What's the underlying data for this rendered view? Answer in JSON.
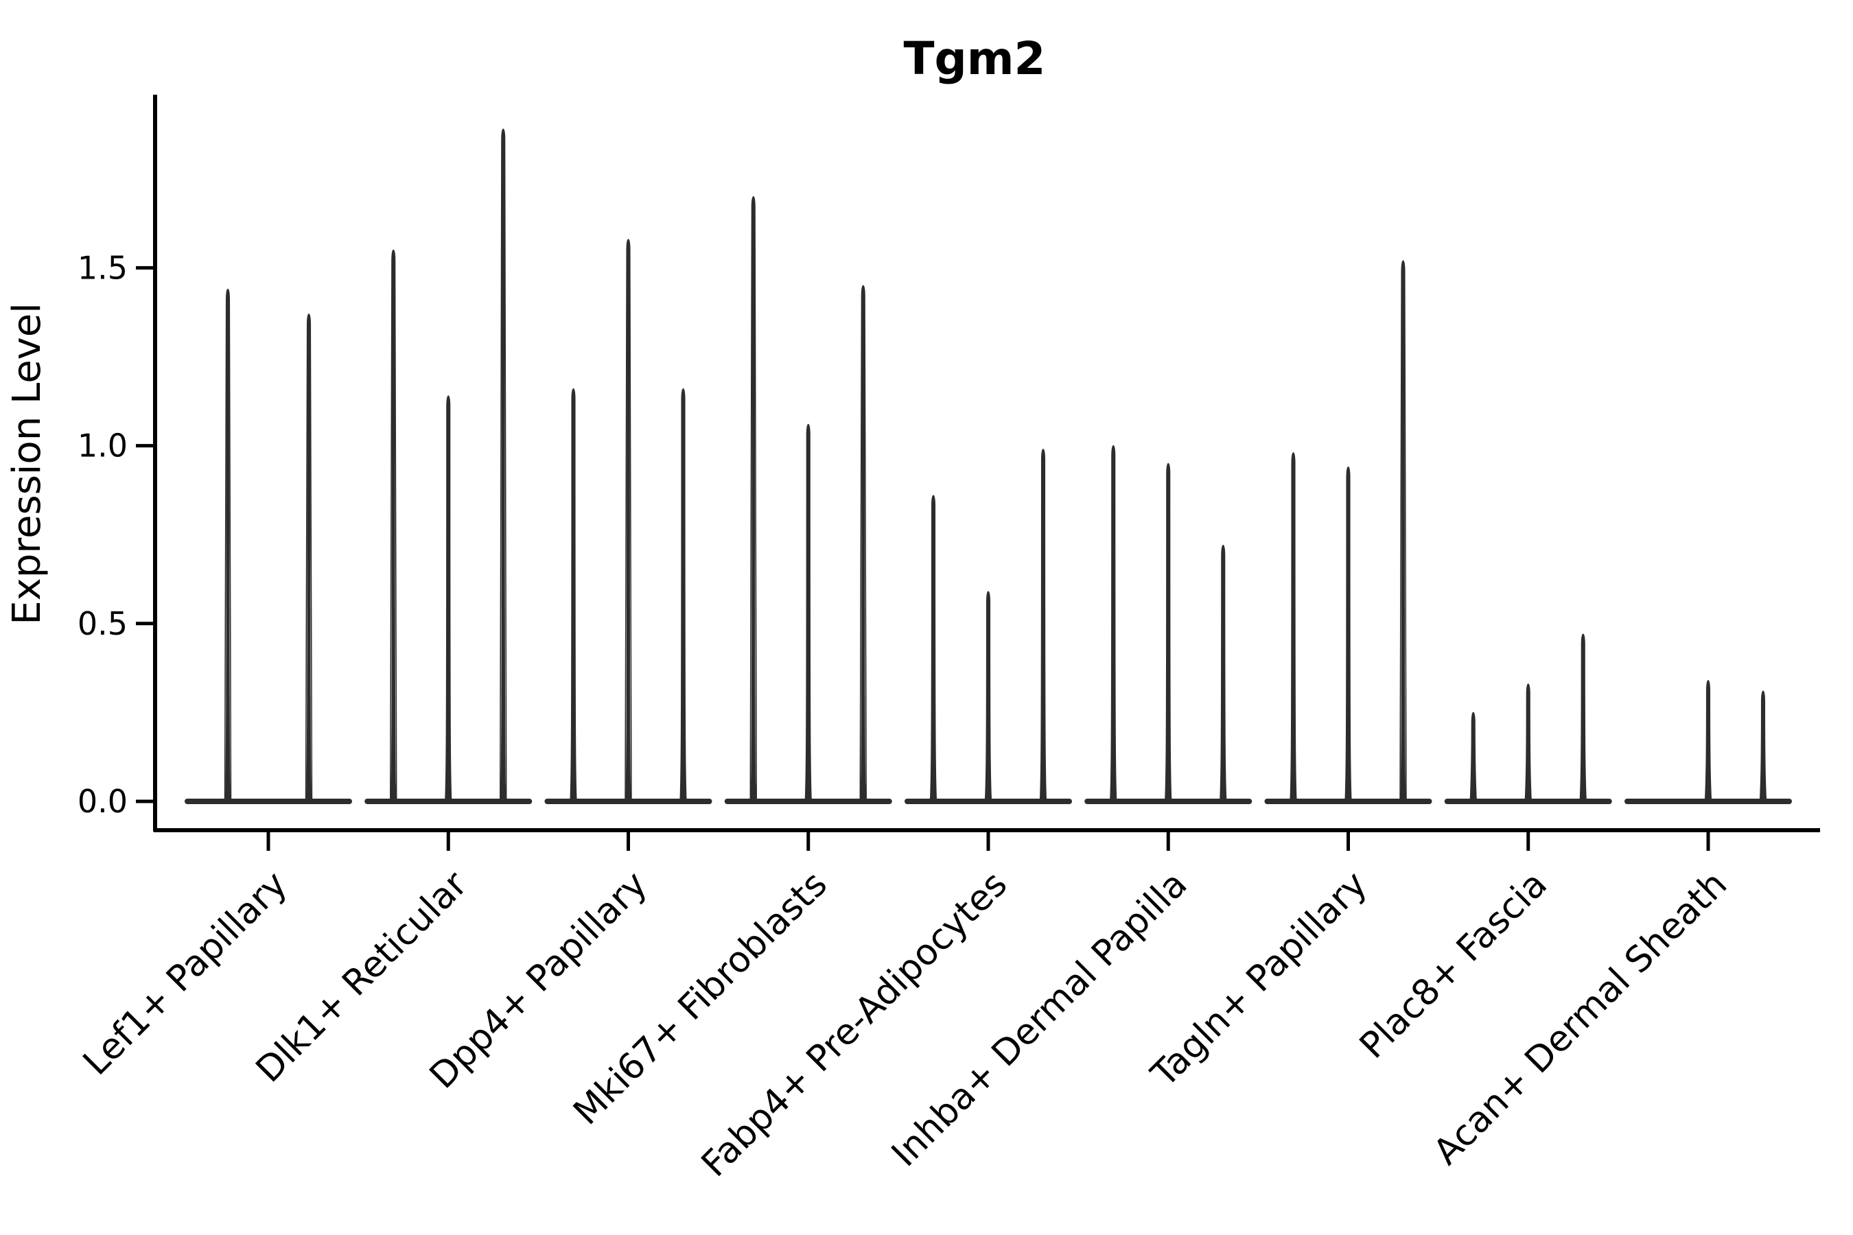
{
  "chart_data": {
    "type": "violin",
    "title": "Tgm2",
    "ylabel": "Expression Level",
    "xlabel": "",
    "ytick_labels": [
      "0.0",
      "0.5",
      "1.0",
      "1.5"
    ],
    "ytick_values": [
      0.0,
      0.5,
      1.0,
      1.5
    ],
    "ylim": [
      -0.08,
      1.99
    ],
    "grid": false,
    "legend": "none",
    "categories": [
      "Lef1+ Papillary",
      "Dlk1+ Reticular",
      "Dpp4+ Papillary",
      "Mki67+ Fibroblasts",
      "Fabp4+ Pre-Adipocytes",
      "Inhba+ Dermal Papilla",
      "Tagln+ Papillary",
      "Plac8+ Fascia",
      "Acan+ Dermal Sheath"
    ],
    "groups": [
      {
        "label": "Lef1+ Papillary",
        "violins": [
          {
            "offset": -59,
            "peak": 1.44
          },
          {
            "offset": 59,
            "peak": 1.37
          }
        ]
      },
      {
        "label": "Dlk1+ Reticular",
        "violins": [
          {
            "offset": -80,
            "peak": 1.55
          },
          {
            "offset": 0,
            "peak": 1.14
          },
          {
            "offset": 80,
            "peak": 1.89
          }
        ]
      },
      {
        "label": "Dpp4+ Papillary",
        "violins": [
          {
            "offset": -80,
            "peak": 1.16
          },
          {
            "offset": 0,
            "peak": 1.58
          },
          {
            "offset": 80,
            "peak": 1.16
          }
        ]
      },
      {
        "label": "Mki67+ Fibroblasts",
        "violins": [
          {
            "offset": -80,
            "peak": 1.7
          },
          {
            "offset": 0,
            "peak": 1.06
          },
          {
            "offset": 80,
            "peak": 1.45
          }
        ]
      },
      {
        "label": "Fabp4+ Pre-Adipocytes",
        "violins": [
          {
            "offset": -80,
            "peak": 0.86
          },
          {
            "offset": 0,
            "peak": 0.59
          },
          {
            "offset": 80,
            "peak": 0.99
          }
        ]
      },
      {
        "label": "Inhba+ Dermal Papilla",
        "violins": [
          {
            "offset": -80,
            "peak": 1.0
          },
          {
            "offset": 0,
            "peak": 0.95
          },
          {
            "offset": 80,
            "peak": 0.72
          }
        ]
      },
      {
        "label": "Tagln+ Papillary",
        "violins": [
          {
            "offset": -80,
            "peak": 0.98
          },
          {
            "offset": 0,
            "peak": 0.94
          },
          {
            "offset": 80,
            "peak": 1.52
          }
        ]
      },
      {
        "label": "Plac8+ Fascia",
        "violins": [
          {
            "offset": -80,
            "peak": 0.25
          },
          {
            "offset": 0,
            "peak": 0.33
          },
          {
            "offset": 80,
            "peak": 0.47
          }
        ]
      },
      {
        "label": "Acan+ Dermal Sheath",
        "violins": [
          {
            "offset": -80,
            "peak": 0.0
          },
          {
            "offset": 0,
            "peak": 0.34
          },
          {
            "offset": 80,
            "peak": 0.31
          }
        ]
      }
    ],
    "colors": {
      "violin": "#2d2d2d",
      "axis": "#000000",
      "text": "#000000",
      "background": "#ffffff"
    }
  }
}
